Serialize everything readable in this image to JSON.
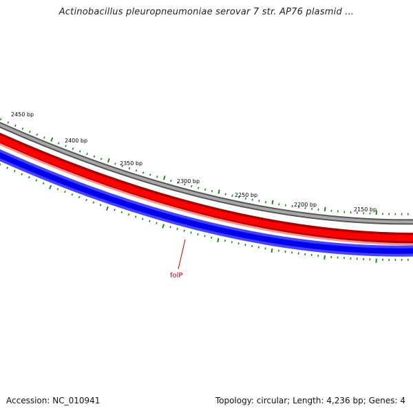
{
  "title": "Actinobacillus pleuropneumoniae serovar 7 str. AP76 plasmid ...",
  "footer": {
    "accession": "Accession: NC_010941",
    "summary": "Topology: circular; Length: 4,236 bp; Genes: 4"
  },
  "map": {
    "tick_labels": [
      "2450 bp",
      "2400 bp",
      "2350 bp",
      "2300 bp",
      "2250 bp",
      "2200 bp",
      "2150 bp"
    ],
    "gene_labels": [
      "folP"
    ]
  },
  "colors": {
    "backbone": "#808080",
    "forward_strand": "#ee0000",
    "reverse_strand": "#0000ee",
    "ticks": "#1a8a1a",
    "gene_label": "#cc0000"
  }
}
